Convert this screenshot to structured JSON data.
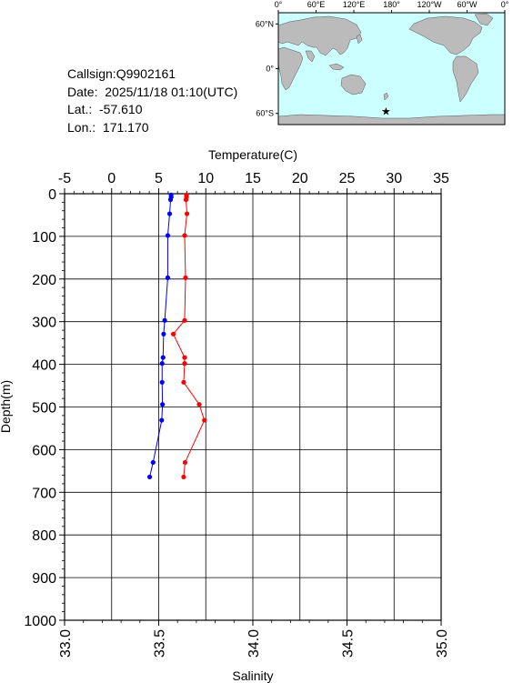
{
  "info": {
    "callsign": "Callsign:Q9902161",
    "date": "Date:  2025/11/18 01:10(UTC)",
    "lat": "Lat.:  -57.610",
    "lon": "Lon.:  171.170"
  },
  "map": {
    "lon_ticks": [
      "0°",
      "60°E",
      "120°E",
      "180°",
      "120°W",
      "60°W",
      "0°"
    ],
    "lat_ticks": [
      "60°N",
      "0°",
      "60°S"
    ],
    "ocean_color": "#ccffff",
    "land_color": "#bbbbbb",
    "marker": {
      "icon": "star-icon",
      "color": "#ff0000",
      "lon": 171.17,
      "lat": -57.61
    }
  },
  "chart_data": {
    "type": "line",
    "xlabel_top": "Temperature(C)",
    "xlabel_bottom": "Salinity",
    "ylabel": "Depth(m)",
    "temperature_ticks": [
      "-5",
      "0",
      "5",
      "10",
      "15",
      "20",
      "25",
      "30",
      "35"
    ],
    "salinity_ticks": [
      "33.0",
      "33.5",
      "34.0",
      "34.5",
      "35.0"
    ],
    "depth_ticks": [
      "0",
      "100",
      "200",
      "300",
      "400",
      "500",
      "600",
      "700",
      "800",
      "900",
      "1000"
    ],
    "temperature_range": [
      -5,
      35
    ],
    "salinity_range": [
      33.0,
      35.0
    ],
    "depth_range": [
      0,
      1000
    ],
    "grid": true,
    "series": [
      {
        "type": "temperature",
        "color": "#ff0000",
        "depth": [
          3,
          8,
          14,
          47,
          98,
          197,
          297,
          329,
          384,
          398,
          442,
          494,
          531,
          630,
          664
        ],
        "values": [
          7.95,
          7.95,
          7.9,
          8.0,
          7.75,
          7.85,
          7.75,
          6.55,
          7.75,
          7.75,
          7.65,
          9.3,
          9.85,
          7.8,
          7.65
        ]
      },
      {
        "type": "salinity",
        "color": "#0000ff",
        "depth": [
          3,
          8,
          14,
          47,
          98,
          197,
          297,
          329,
          384,
          398,
          442,
          494,
          531,
          630,
          664
        ],
        "values": [
          33.566,
          33.566,
          33.563,
          33.558,
          33.548,
          33.548,
          33.532,
          33.526,
          33.523,
          33.518,
          33.518,
          33.52,
          33.516,
          33.47,
          33.452
        ]
      }
    ]
  }
}
